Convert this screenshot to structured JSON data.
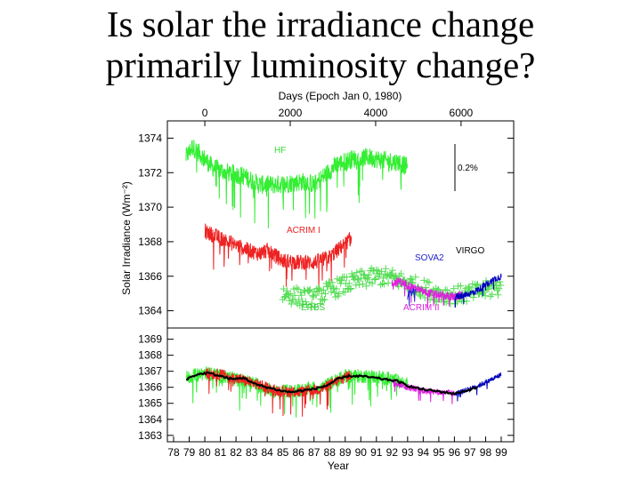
{
  "slide": {
    "title_line1": "Is solar the irradiance change",
    "title_line2": "primarily luminosity change?"
  },
  "chart_data": [
    {
      "type": "line",
      "panel": "top",
      "top_axis_label": "Days (Epoch Jan 0, 1980)",
      "top_ticks": [
        "0",
        "2000",
        "4000",
        "6000"
      ],
      "top_tick_values": [
        0,
        2000,
        4000,
        6000
      ],
      "ylabel": "Solar Irradiance (Wm⁻²)",
      "ylim": [
        1363,
        1375
      ],
      "yticks": [
        "1364",
        "1366",
        "1368",
        "1370",
        "1372",
        "1374"
      ],
      "ytick_values": [
        1364,
        1366,
        1368,
        1370,
        1372,
        1374
      ],
      "scale_bar_label": "0.2%",
      "series": [
        {
          "name": "HF",
          "color": "#33ee33",
          "x": [
            1978.8,
            1979.2,
            1979.8,
            1980.5,
            1981.5,
            1982.5,
            1983.5,
            1984.5,
            1985.5,
            1986.5,
            1987.0,
            1987.5,
            1988.5,
            1989.5,
            1990.5,
            1991.5,
            1992.5,
            1993.0
          ],
          "y": [
            1372.9,
            1373.5,
            1373.0,
            1372.3,
            1372.0,
            1371.8,
            1371.3,
            1371.3,
            1371.4,
            1371.5,
            1371.3,
            1371.7,
            1372.5,
            1372.8,
            1372.9,
            1372.7,
            1372.6,
            1372.3
          ]
        },
        {
          "name": "ACRIM I",
          "color": "#ee2222",
          "x": [
            1980.0,
            1980.5,
            1981.5,
            1982.5,
            1983.5,
            1984.0,
            1985.0,
            1986.0,
            1987.0,
            1988.0,
            1988.5,
            1989.0,
            1989.4
          ],
          "y": [
            1368.6,
            1368.4,
            1368.0,
            1367.6,
            1367.3,
            1367.5,
            1366.9,
            1366.8,
            1366.8,
            1367.1,
            1367.5,
            1367.9,
            1368.2
          ]
        },
        {
          "name": "ERBS",
          "color": "#55dd55",
          "x": [
            1985.0,
            1986.0,
            1987.0,
            1988.0,
            1989.0,
            1990.0,
            1991.0,
            1992.0,
            1993.0,
            1994.0,
            1995.0,
            1996.0,
            1997.0,
            1998.0,
            1999.0
          ],
          "y": [
            1365.0,
            1364.8,
            1364.7,
            1365.2,
            1365.5,
            1365.8,
            1366.0,
            1365.9,
            1365.6,
            1365.3,
            1365.0,
            1364.9,
            1365.0,
            1365.2,
            1365.4
          ]
        },
        {
          "name": "ACRIM II",
          "color": "#dd22dd",
          "x": [
            1992.0,
            1992.5,
            1993.0,
            1994.0,
            1995.0,
            1996.0,
            1996.5
          ],
          "y": [
            1365.6,
            1365.7,
            1365.5,
            1365.1,
            1364.9,
            1364.8,
            1364.9
          ]
        },
        {
          "name": "SOVA2",
          "color": "#2222cc",
          "x": [
            1993.0,
            1993.5
          ],
          "y": [
            1365.0,
            1365.1
          ]
        },
        {
          "name": "VIRGO",
          "color": "#0000bb",
          "x": [
            1996.0,
            1996.5,
            1997.0,
            1997.5,
            1998.0,
            1998.5,
            1999.0
          ],
          "y": [
            1364.8,
            1364.9,
            1365.0,
            1365.2,
            1365.5,
            1365.8,
            1366.0
          ]
        }
      ],
      "labels": [
        "HF",
        "ACRIM I",
        "ERBS",
        "ACRIM II",
        "SOVA2",
        "VIRGO"
      ]
    },
    {
      "type": "line",
      "panel": "bottom",
      "xlabel": "Year",
      "xticks": [
        "78",
        "79",
        "80",
        "81",
        "82",
        "83",
        "84",
        "85",
        "86",
        "87",
        "88",
        "89",
        "90",
        "91",
        "92",
        "93",
        "94",
        "95",
        "96",
        "97",
        "98",
        "99"
      ],
      "xlim": [
        1977.6,
        1999.8
      ],
      "ylim": [
        1362.6,
        1369.7
      ],
      "yticks": [
        "1363",
        "1364",
        "1365",
        "1366",
        "1367",
        "1368",
        "1369"
      ],
      "ytick_values": [
        1363,
        1364,
        1365,
        1366,
        1367,
        1368,
        1369
      ],
      "composite": {
        "x": [
          1978.8,
          1979.5,
          1980.2,
          1981.0,
          1981.8,
          1982.5,
          1983.2,
          1984.0,
          1984.8,
          1985.5,
          1986.3,
          1987.0,
          1987.8,
          1988.5,
          1989.2,
          1990.0,
          1990.8,
          1991.5,
          1992.3,
          1993.0,
          1993.8,
          1994.5,
          1995.3,
          1996.0,
          1996.8,
          1997.5
        ],
        "y": [
          1366.5,
          1366.8,
          1366.9,
          1366.7,
          1366.5,
          1366.6,
          1366.2,
          1366.0,
          1365.8,
          1365.7,
          1365.8,
          1365.9,
          1366.1,
          1366.5,
          1366.7,
          1366.7,
          1366.6,
          1366.5,
          1366.4,
          1366.1,
          1365.9,
          1365.8,
          1365.7,
          1365.6,
          1365.8,
          1366.0
        ]
      },
      "series": [
        {
          "name": "HF",
          "color": "#33ee33",
          "x": [
            1978.8,
            1980.0,
            1981.5,
            1983.0,
            1984.5,
            1986.0,
            1987.5,
            1989.0,
            1990.5,
            1992.0,
            1993.0
          ],
          "y": [
            1366.6,
            1366.9,
            1366.6,
            1366.3,
            1365.7,
            1365.8,
            1366.0,
            1366.7,
            1366.7,
            1366.5,
            1366.2
          ]
        },
        {
          "name": "ACRIM I",
          "color": "#ee2222",
          "x": [
            1980.0,
            1981.0,
            1983.0,
            1984.5,
            1986.0,
            1987.5,
            1988.5,
            1989.4
          ],
          "y": [
            1366.9,
            1366.8,
            1366.3,
            1365.8,
            1365.7,
            1365.9,
            1366.4,
            1366.8
          ]
        },
        {
          "name": "ACRIM II",
          "color": "#dd22dd",
          "x": [
            1992.0,
            1993.0,
            1994.0,
            1995.0,
            1996.0
          ],
          "y": [
            1366.4,
            1366.0,
            1365.8,
            1365.7,
            1365.6
          ]
        },
        {
          "name": "VIRGO",
          "color": "#0000bb",
          "x": [
            1996.0,
            1997.0,
            1998.0,
            1999.0
          ],
          "y": [
            1365.6,
            1365.9,
            1366.3,
            1366.8
          ]
        }
      ]
    }
  ]
}
